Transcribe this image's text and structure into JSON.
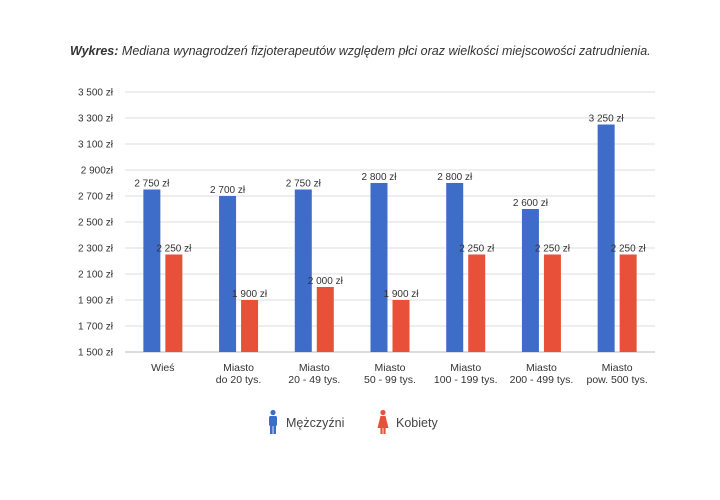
{
  "title": {
    "prefix": "Wykres:",
    "text": "Mediana wynagrodzeń fizjoterapeutów względem płci oraz wielkości miejscowości zatrudnienia."
  },
  "chart_data": {
    "type": "bar",
    "categories": [
      [
        "Wieś"
      ],
      [
        "Miasto",
        "do 20 tys."
      ],
      [
        "Miasto",
        "20 - 49 tys."
      ],
      [
        "Miasto",
        "50 - 99 tys."
      ],
      [
        "Miasto",
        "100 - 199 tys."
      ],
      [
        "Miasto",
        "200 - 499 tys."
      ],
      [
        "Miasto",
        "pow. 500 tys."
      ]
    ],
    "series": [
      {
        "name": "Mężczyźni",
        "color": "#3d6cc9",
        "values": [
          2750,
          2700,
          2750,
          2800,
          2800,
          2600,
          3250
        ],
        "labels": [
          "2 750 zł",
          "2 700 zł",
          "2 750 zł",
          "2 800 zł",
          "2 800 zł",
          "2 600 zł",
          "3 250 zł"
        ],
        "icon": "male-person-icon"
      },
      {
        "name": "Kobiety",
        "color": "#e8503a",
        "values": [
          2250,
          1900,
          2000,
          1900,
          2250,
          2250,
          2250
        ],
        "labels": [
          "2 250 zł",
          "1 900 zł",
          "2 000 zł",
          "1 900 zł",
          "2 250 zł",
          "2 250 zł",
          "2 250 zł"
        ],
        "icon": "female-person-icon"
      }
    ],
    "ylim": [
      1500,
      3500
    ],
    "yticks": [
      1500,
      1700,
      1900,
      2100,
      2300,
      2500,
      2700,
      2900,
      3100,
      3300,
      3500
    ],
    "ytick_labels": [
      "1 500 zł",
      "1 700 zł",
      "1 900 zł",
      "2 100 zł",
      "2 300 zł",
      "2 500 zł",
      "2 700 zł",
      "2 900zł",
      "3 100 zł",
      "3 300 zł",
      "3 500 zł"
    ],
    "grid": true,
    "legend_position": "bottom-center",
    "xlabel": "",
    "ylabel": ""
  }
}
